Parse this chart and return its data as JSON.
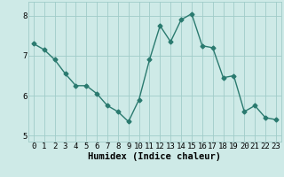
{
  "x": [
    0,
    1,
    2,
    3,
    4,
    5,
    6,
    7,
    8,
    9,
    10,
    11,
    12,
    13,
    14,
    15,
    16,
    17,
    18,
    19,
    20,
    21,
    22,
    23
  ],
  "y": [
    7.3,
    7.15,
    6.9,
    6.55,
    6.25,
    6.25,
    6.05,
    5.75,
    5.6,
    5.35,
    5.9,
    6.9,
    7.75,
    7.35,
    7.9,
    8.05,
    7.25,
    7.2,
    6.45,
    6.5,
    5.6,
    5.75,
    5.45,
    5.4
  ],
  "line_color": "#2a7a6f",
  "marker": "D",
  "marker_size": 2.5,
  "line_width": 1.0,
  "bg_color": "#ceeae7",
  "grid_color": "#a0ccc8",
  "xlabel": "Humidex (Indice chaleur)",
  "xlabel_fontsize": 7.5,
  "xlim": [
    -0.5,
    23.5
  ],
  "ylim": [
    4.85,
    8.35
  ],
  "yticks": [
    5,
    6,
    7,
    8
  ],
  "xticks": [
    0,
    1,
    2,
    3,
    4,
    5,
    6,
    7,
    8,
    9,
    10,
    11,
    12,
    13,
    14,
    15,
    16,
    17,
    18,
    19,
    20,
    21,
    22,
    23
  ],
  "tick_label_fontsize": 6.5
}
